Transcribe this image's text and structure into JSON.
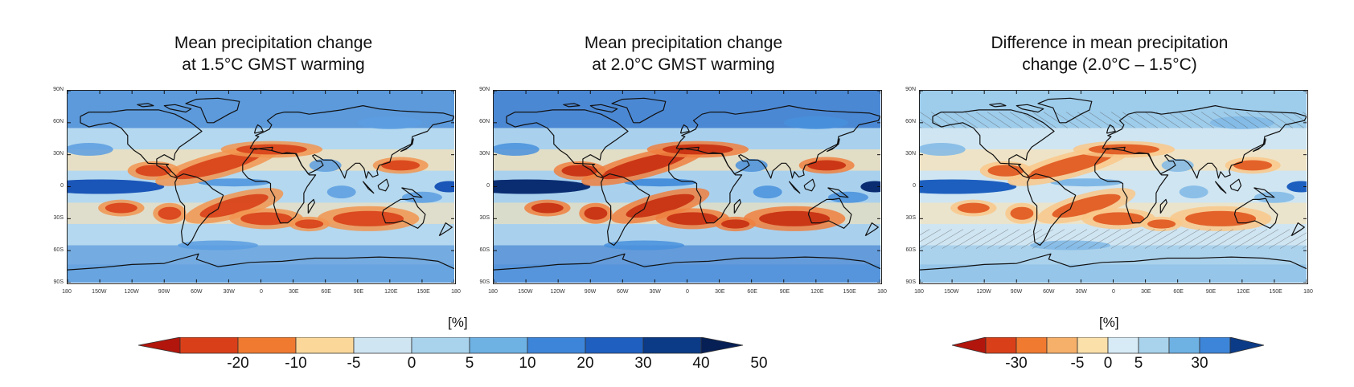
{
  "panels": [
    {
      "title_line1": "Mean precipitation change",
      "title_line2": "at 1.5°C GMST warming"
    },
    {
      "title_line1": "Mean precipitation change",
      "title_line2": "at 2.0°C GMST warming"
    },
    {
      "title_line1": "Difference in mean precipitation",
      "title_line2": "change (2.0°C – 1.5°C)"
    }
  ],
  "lat_ticks": [
    "90N",
    "60N",
    "30N",
    "0",
    "30S",
    "60S",
    "90S"
  ],
  "lon_ticks": [
    "180",
    "150W",
    "120W",
    "90W",
    "60W",
    "30W",
    "0",
    "30E",
    "60E",
    "90E",
    "120E",
    "150E",
    "180"
  ],
  "colorbar_left": {
    "unit": "[%]",
    "labels": [
      "-20",
      "-10",
      "-5",
      "0",
      "5",
      "10",
      "20",
      "30",
      "40",
      "50"
    ],
    "colors": [
      "#b2150c",
      "#d9401a",
      "#ef7a30",
      "#fbd89a",
      "#cfe6f2",
      "#a9d3ec",
      "#6eb1e3",
      "#3d85d8",
      "#1e5fbf",
      "#0b3a86",
      "#061f55"
    ]
  },
  "colorbar_right": {
    "unit": "[%]",
    "labels": [
      "-30",
      "-5",
      "0",
      "5",
      "30"
    ],
    "colors": [
      "#b2150c",
      "#d9401a",
      "#ef7a30",
      "#f6b06a",
      "#fbe0aa",
      "#d6ebf5",
      "#a9d3ec",
      "#6eb1e3",
      "#3d85d8",
      "#0b3a86"
    ]
  }
}
